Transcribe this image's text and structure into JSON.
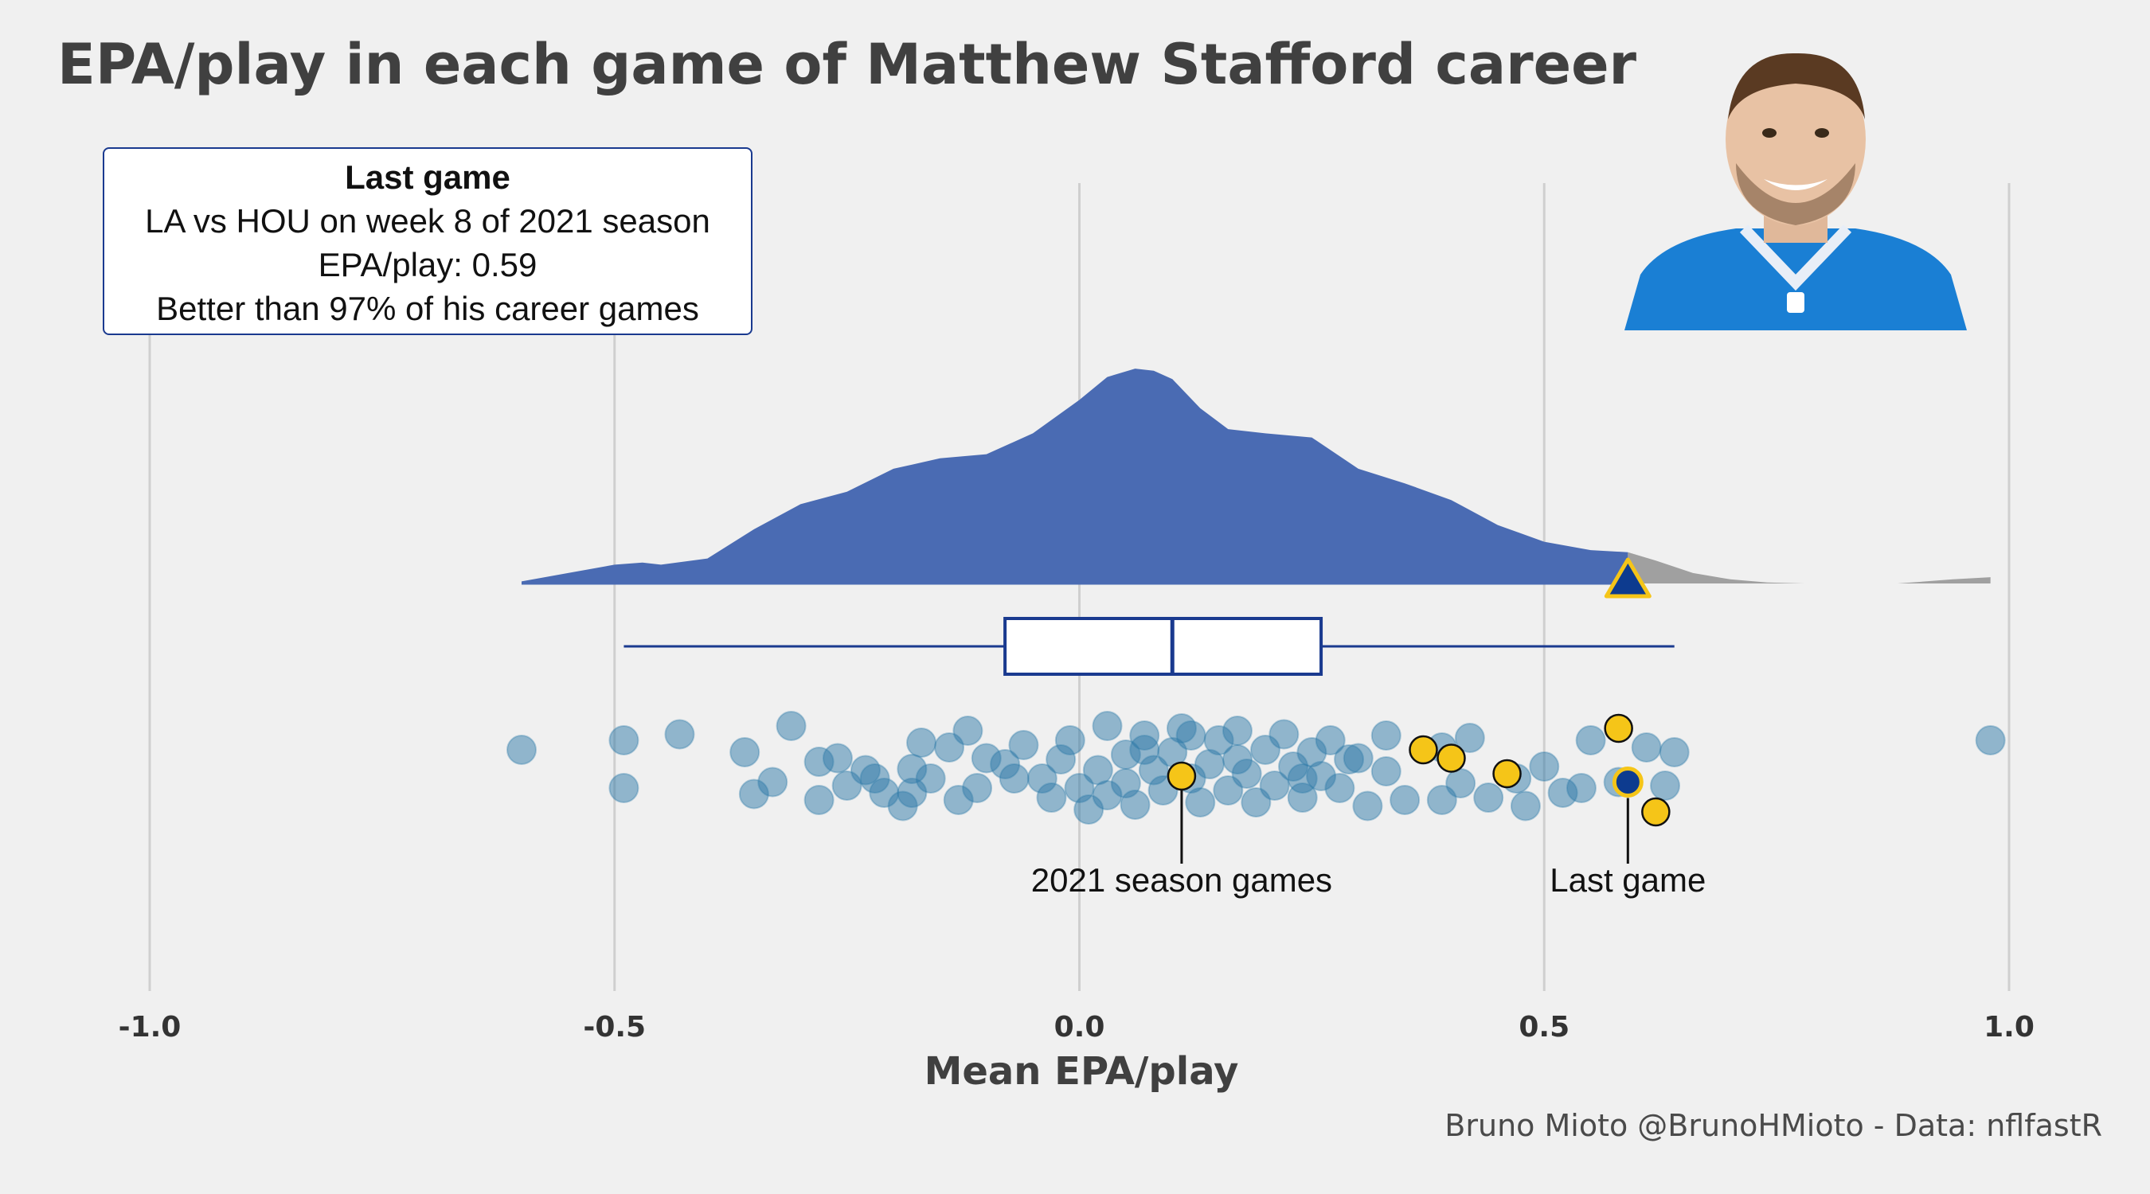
{
  "title": "EPA/play in each game of Matthew Stafford career",
  "caption": "Bruno Mioto @BrunoHMioto - Data: nflfastR",
  "infobox": {
    "heading": "Last game",
    "line1": "LA vs HOU on week 8 of 2021 season",
    "line2": "EPA/play: 0.59",
    "line3": "Better than 97% of his career games"
  },
  "photo": {
    "icon": "player-photo-icon",
    "jersey_color": "#1a7fd4"
  },
  "annotations": {
    "season_label": "2021 season games",
    "last_game_label": "Last game"
  },
  "colors": {
    "background": "#f0f0f0",
    "density_fill": "#4a6bb3",
    "density_tail": "#a0a0a0",
    "box_stroke": "#1a3a8f",
    "point_fill": "#2f7aa8",
    "highlight_fill": "#f5c518",
    "last_game_fill": "#0d3b8f"
  },
  "chart_data": {
    "type": "scatter",
    "xlabel": "Mean EPA/play",
    "xlim": [
      -1.0,
      1.0
    ],
    "x_ticks": [
      -1.0,
      -0.5,
      0.0,
      0.5,
      1.0
    ],
    "x_tick_labels": [
      "-1.0",
      "-0.5",
      "0.0",
      "0.5",
      "1.0"
    ],
    "grid": "vertical major",
    "density": {
      "x": [
        -0.6,
        -0.55,
        -0.5,
        -0.47,
        -0.45,
        -0.4,
        -0.35,
        -0.3,
        -0.25,
        -0.2,
        -0.15,
        -0.1,
        -0.05,
        0.0,
        0.03,
        0.06,
        0.08,
        0.1,
        0.13,
        0.16,
        0.2,
        0.25,
        0.3,
        0.35,
        0.4,
        0.45,
        0.5,
        0.55,
        0.59,
        0.62,
        0.66,
        0.7,
        0.74,
        0.78,
        0.82,
        0.88,
        0.94,
        0.98
      ],
      "y": [
        0.01,
        0.05,
        0.09,
        0.1,
        0.09,
        0.12,
        0.26,
        0.38,
        0.44,
        0.55,
        0.6,
        0.62,
        0.72,
        0.88,
        0.99,
        1.03,
        1.02,
        0.98,
        0.84,
        0.74,
        0.72,
        0.7,
        0.55,
        0.48,
        0.4,
        0.28,
        0.2,
        0.16,
        0.15,
        0.11,
        0.05,
        0.02,
        0.005,
        0.0,
        0.0,
        0.0,
        0.02,
        0.03
      ]
    },
    "boxplot": {
      "whisker_low": -0.49,
      "q1": -0.08,
      "median": 0.1,
      "q3": 0.26,
      "whisker_high": 0.64
    },
    "last_game_epa": 0.59,
    "series": [
      {
        "name": "games",
        "points": [
          [
            -0.6,
            0.38
          ],
          [
            -0.49,
            0.3
          ],
          [
            -0.49,
            0.7
          ],
          [
            -0.43,
            0.25
          ],
          [
            -0.36,
            0.4
          ],
          [
            -0.35,
            0.75
          ],
          [
            -0.31,
            0.18
          ],
          [
            -0.33,
            0.65
          ],
          [
            -0.28,
            0.48
          ],
          [
            -0.28,
            0.8
          ],
          [
            -0.25,
            0.68
          ],
          [
            -0.23,
            0.55
          ],
          [
            -0.21,
            0.74
          ],
          [
            -0.26,
            0.45
          ],
          [
            -0.19,
            0.85
          ],
          [
            -0.18,
            0.74
          ],
          [
            -0.16,
            0.62
          ],
          [
            -0.17,
            0.32
          ],
          [
            -0.14,
            0.36
          ],
          [
            -0.13,
            0.8
          ],
          [
            -0.11,
            0.7
          ],
          [
            -0.12,
            0.22
          ],
          [
            -0.1,
            0.45
          ],
          [
            -0.08,
            0.5
          ],
          [
            -0.06,
            0.34
          ],
          [
            -0.04,
            0.62
          ],
          [
            -0.03,
            0.78
          ],
          [
            -0.02,
            0.46
          ],
          [
            -0.01,
            0.3
          ],
          [
            0.0,
            0.7
          ],
          [
            0.01,
            0.88
          ],
          [
            0.02,
            0.55
          ],
          [
            0.03,
            0.18
          ],
          [
            0.05,
            0.42
          ],
          [
            0.05,
            0.66
          ],
          [
            0.06,
            0.84
          ],
          [
            0.07,
            0.26
          ],
          [
            0.08,
            0.55
          ],
          [
            0.09,
            0.72
          ],
          [
            0.1,
            0.4
          ],
          [
            0.11,
            0.2
          ],
          [
            0.12,
            0.62
          ],
          [
            0.13,
            0.82
          ],
          [
            0.14,
            0.5
          ],
          [
            0.15,
            0.3
          ],
          [
            0.16,
            0.72
          ],
          [
            0.17,
            0.22
          ],
          [
            0.18,
            0.58
          ],
          [
            0.19,
            0.82
          ],
          [
            0.2,
            0.38
          ],
          [
            0.21,
            0.68
          ],
          [
            0.22,
            0.25
          ],
          [
            0.23,
            0.52
          ],
          [
            0.24,
            0.78
          ],
          [
            0.25,
            0.4
          ],
          [
            0.26,
            0.6
          ],
          [
            0.27,
            0.3
          ],
          [
            0.28,
            0.7
          ],
          [
            0.3,
            0.45
          ],
          [
            0.31,
            0.85
          ],
          [
            0.33,
            0.56
          ],
          [
            0.35,
            0.8
          ],
          [
            0.39,
            0.36
          ],
          [
            0.39,
            0.8
          ],
          [
            0.41,
            0.66
          ],
          [
            0.42,
            0.28
          ],
          [
            0.44,
            0.78
          ],
          [
            0.47,
            0.62
          ],
          [
            0.48,
            0.85
          ],
          [
            0.5,
            0.52
          ],
          [
            0.52,
            0.74
          ],
          [
            0.54,
            0.7
          ],
          [
            0.55,
            0.3
          ],
          [
            0.58,
            0.65
          ],
          [
            0.61,
            0.36
          ],
          [
            0.63,
            0.68
          ],
          [
            0.64,
            0.4
          ],
          [
            0.98,
            0.3
          ],
          [
            -0.22,
            0.62
          ],
          [
            -0.07,
            0.62
          ],
          [
            0.07,
            0.38
          ],
          [
            0.17,
            0.46
          ],
          [
            0.29,
            0.46
          ],
          [
            0.03,
            0.76
          ],
          [
            0.24,
            0.62
          ],
          [
            0.12,
            0.26
          ],
          [
            -0.18,
            0.54
          ],
          [
            0.33,
            0.26
          ]
        ]
      },
      {
        "name": "2021 season",
        "points": [
          [
            0.37,
            0.38
          ],
          [
            0.4,
            0.45
          ],
          [
            0.46,
            0.58
          ],
          [
            0.58,
            0.2
          ],
          [
            0.62,
            0.9
          ],
          [
            0.11,
            0.6
          ]
        ]
      },
      {
        "name": "last game",
        "points": [
          [
            0.59,
            0.65
          ]
        ]
      }
    ]
  }
}
